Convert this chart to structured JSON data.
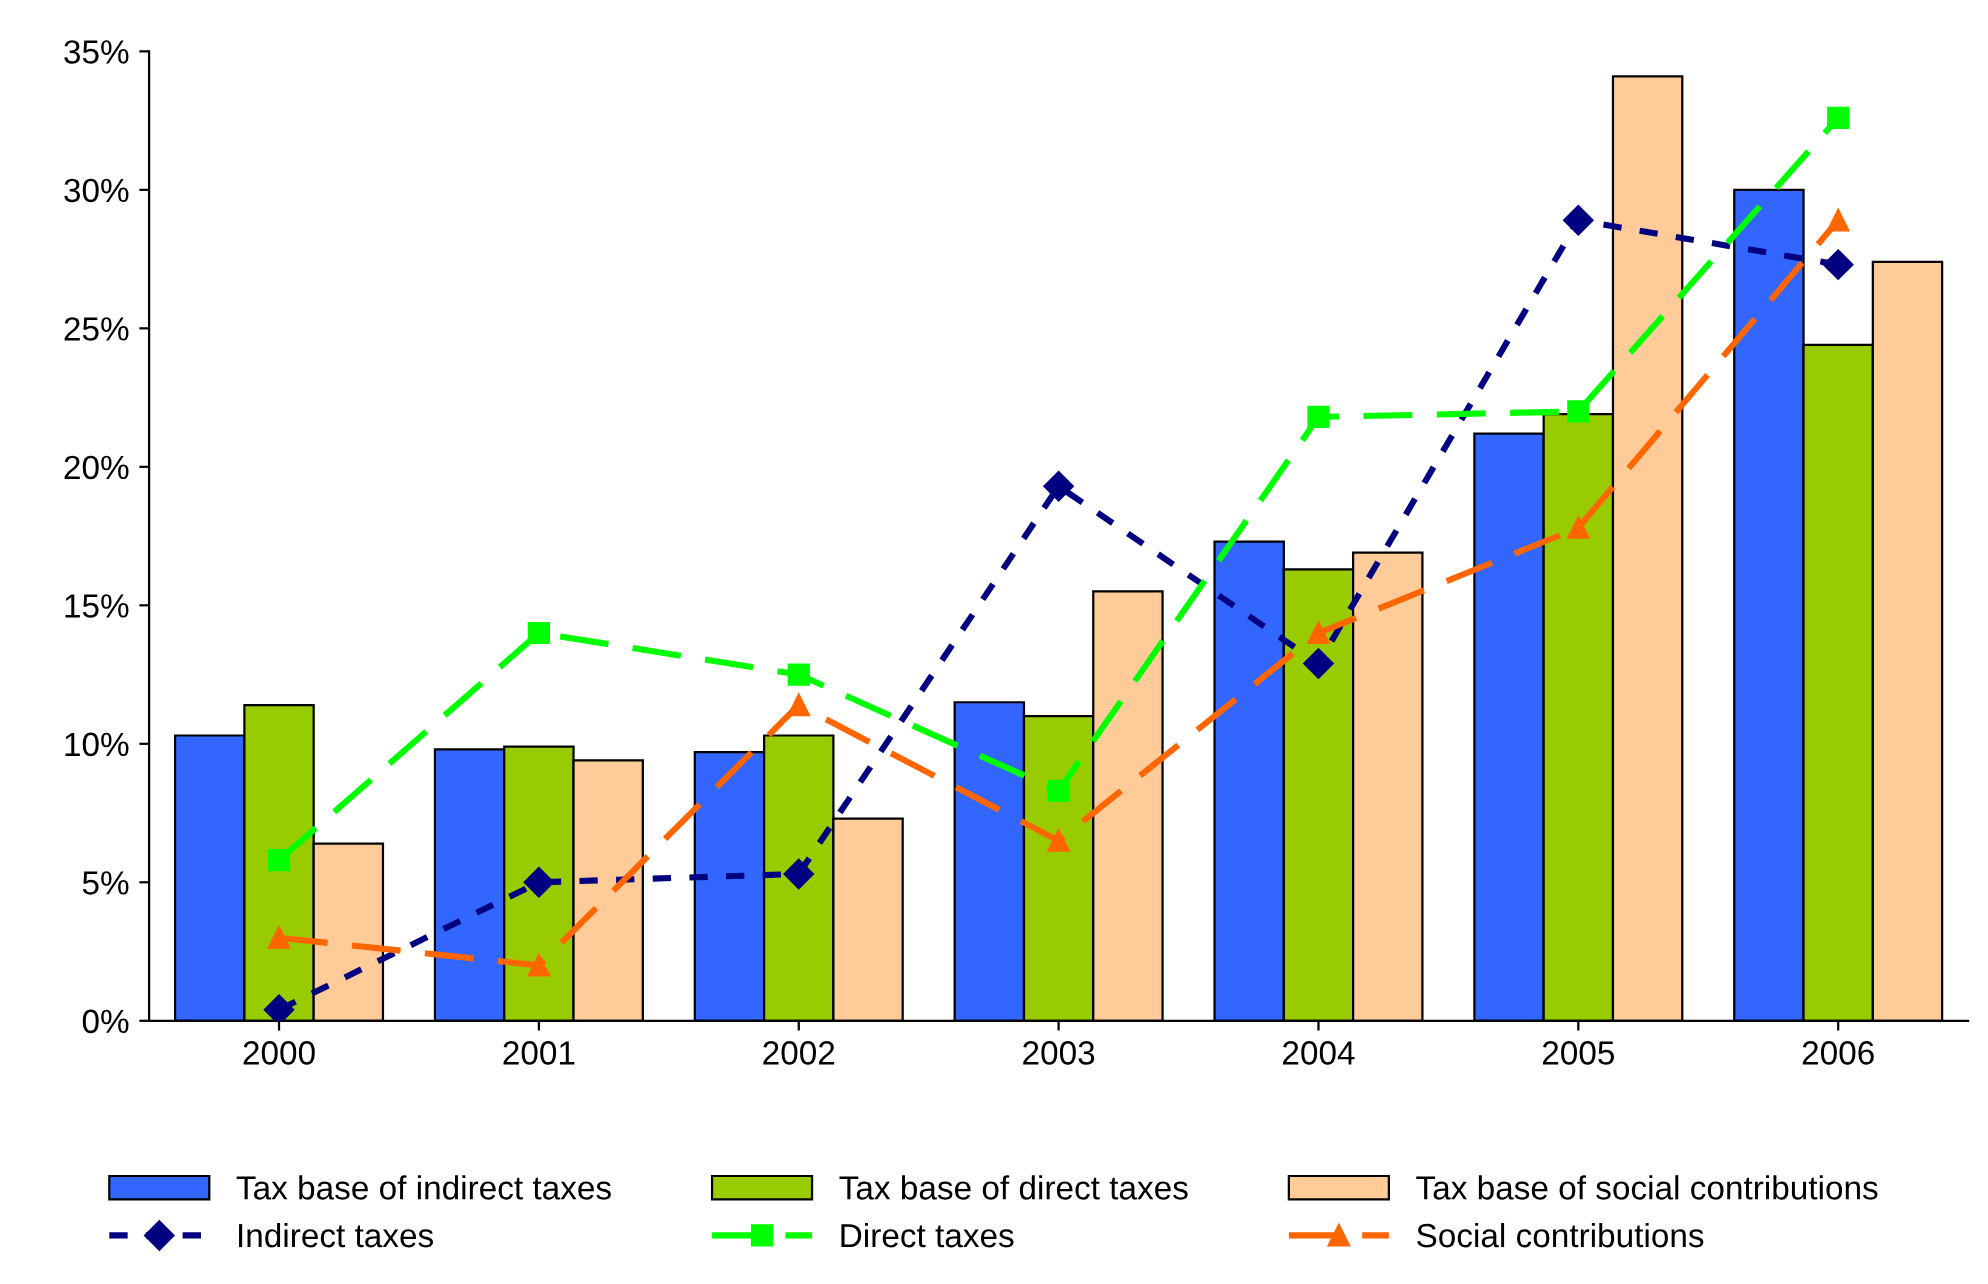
{
  "chart_data": {
    "type": "bar",
    "categories": [
      "2000",
      "2001",
      "2002",
      "2003",
      "2004",
      "2005",
      "2006"
    ],
    "series": [
      {
        "name": "Tax base of indirect taxes",
        "color": "#3366ff",
        "values": [
          10.3,
          9.8,
          9.7,
          11.5,
          17.3,
          21.2,
          30.0
        ]
      },
      {
        "name": "Tax base of direct taxes",
        "color": "#99cc00",
        "values": [
          11.4,
          9.9,
          10.3,
          11.0,
          16.3,
          21.9,
          24.4
        ]
      },
      {
        "name": "Tax base of social contributions",
        "color": "#ffcc99",
        "values": [
          6.4,
          9.4,
          7.3,
          15.5,
          16.9,
          34.1,
          27.4
        ]
      },
      {
        "name": "Indirect taxes",
        "type": "line",
        "color": "#000080",
        "marker": "diamond",
        "line_style": "dotted",
        "values": [
          0.4,
          5.0,
          5.3,
          19.3,
          12.9,
          28.9,
          27.3
        ]
      },
      {
        "name": "Direct taxes",
        "type": "line",
        "color": "#00ff00",
        "marker": "square",
        "line_style": "dashed",
        "values": [
          5.8,
          14.0,
          12.5,
          8.3,
          21.8,
          22.0,
          32.6
        ]
      },
      {
        "name": "Social contributions",
        "type": "line",
        "color": "#ff6600",
        "marker": "triangle",
        "line_style": "dashed",
        "values": [
          3.0,
          2.0,
          11.4,
          6.5,
          14.0,
          17.8,
          28.9
        ]
      }
    ],
    "ylim": [
      0,
      35
    ],
    "yticks": [
      {
        "value": 0,
        "label": "0%"
      },
      {
        "value": 5,
        "label": "5%"
      },
      {
        "value": 10,
        "label": "10%"
      },
      {
        "value": 15,
        "label": "15%"
      },
      {
        "value": 20,
        "label": "20%"
      },
      {
        "value": 25,
        "label": "25%"
      },
      {
        "value": 30,
        "label": "30%"
      },
      {
        "value": 35,
        "label": "35%"
      }
    ],
    "grid": false,
    "legend": "bottom"
  }
}
